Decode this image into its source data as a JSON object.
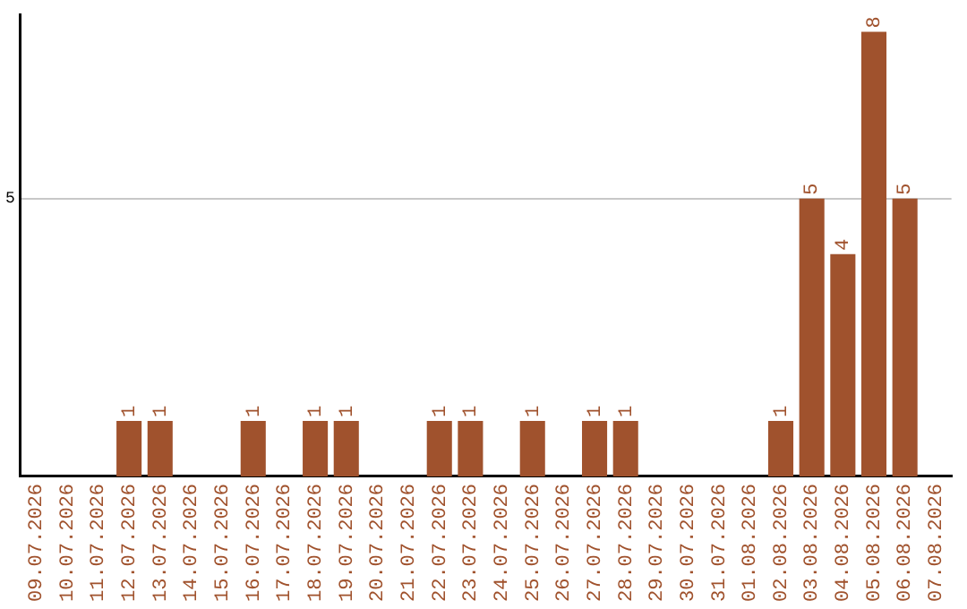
{
  "chart_data": {
    "type": "bar",
    "categories": [
      "09.07.2026",
      "10.07.2026",
      "11.07.2026",
      "12.07.2026",
      "13.07.2026",
      "14.07.2026",
      "15.07.2026",
      "16.07.2026",
      "17.07.2026",
      "18.07.2026",
      "19.07.2026",
      "20.07.2026",
      "21.07.2026",
      "22.07.2026",
      "23.07.2026",
      "24.07.2026",
      "25.07.2026",
      "26.07.2026",
      "27.07.2026",
      "28.07.2026",
      "29.07.2026",
      "30.07.2026",
      "31.07.2026",
      "01.08.2026",
      "02.08.2026",
      "03.08.2026",
      "04.08.2026",
      "05.08.2026",
      "06.08.2026",
      "07.08.2026"
    ],
    "values": [
      0,
      0,
      0,
      1,
      1,
      0,
      0,
      1,
      0,
      1,
      1,
      0,
      0,
      1,
      1,
      0,
      1,
      0,
      1,
      1,
      0,
      0,
      0,
      0,
      1,
      5,
      4,
      8,
      5,
      0
    ],
    "value_labels": [
      null,
      null,
      null,
      "1",
      "1",
      null,
      null,
      "1",
      null,
      "1",
      "1",
      null,
      null,
      "1",
      "1",
      null,
      "1",
      null,
      "1",
      "1",
      null,
      null,
      null,
      null,
      "1",
      "5",
      "4",
      "8",
      "5",
      null
    ],
    "color": "#a0522d",
    "ylim": [
      0,
      8.3
    ],
    "yticks": [
      5
    ],
    "grid": "y",
    "legend": false
  }
}
